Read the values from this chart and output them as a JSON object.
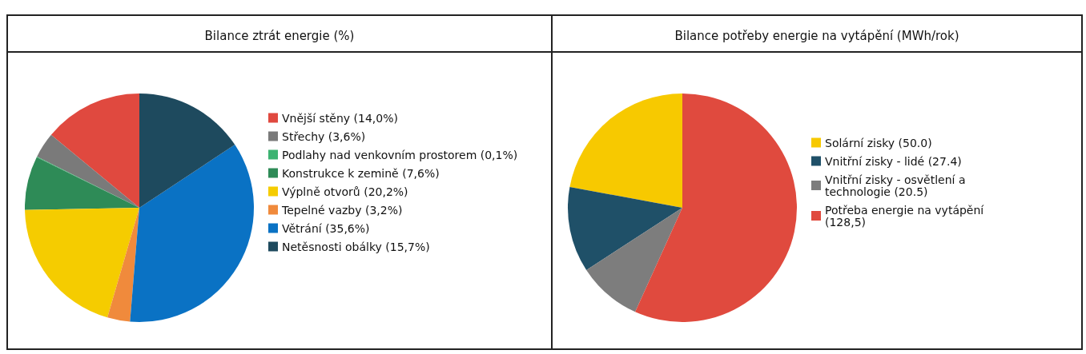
{
  "chart_data": [
    {
      "type": "pie",
      "title": "Bilance ztrát energie (%)",
      "legend": "right",
      "categories": [
        "Vnější stěny (14,0%)",
        "Střechy (3,6%)",
        "Podlahy nad venkovním prostorem (0,1%)",
        "Konstrukce k zemině (7,6%)",
        "Výplně otvorů (20,2%)",
        "Tepelné vazby (3,2%)",
        "Větrání (35,6%)",
        "Netěsnosti obálky (15,7%)"
      ],
      "values": [
        14.0,
        3.6,
        0.1,
        7.6,
        20.2,
        3.2,
        35.6,
        15.7
      ],
      "colors": [
        "#e0493f",
        "#7a7a7a",
        "#3cb371",
        "#2e8b57",
        "#f5cc00",
        "#f08a3c",
        "#0a72c4",
        "#1e4a5e"
      ]
    },
    {
      "type": "pie",
      "title": "Bilance potřeby energie na vytápění (MWh/rok)",
      "legend": "right",
      "categories": [
        "Solární zisky (50.0)",
        "Vnitřní zisky - lidé (27.4)",
        "Vnitřní zisky - osvětlení a technologie (20.5)",
        "Potřeba energie na vytápění (128,5)"
      ],
      "values": [
        50.0,
        27.4,
        20.5,
        128.5
      ],
      "colors": [
        "#f7c900",
        "#1f5068",
        "#7d7d7d",
        "#e04a3e"
      ]
    }
  ]
}
